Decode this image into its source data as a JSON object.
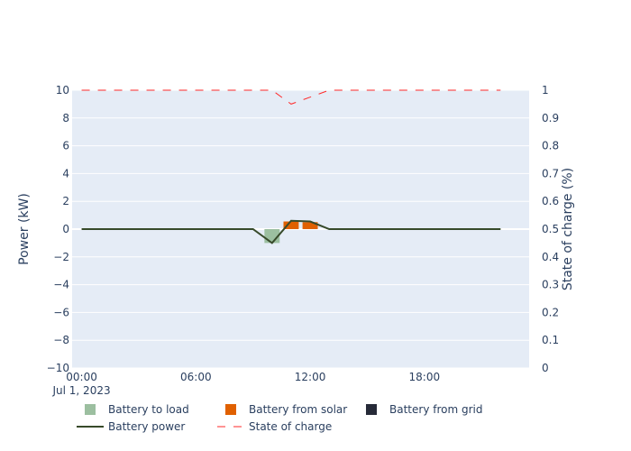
{
  "chart_data": {
    "type": "bar",
    "x_axis": {
      "range_hours": [
        -0.5,
        23.5
      ],
      "ticks": [
        {
          "hour": 0,
          "label": "00:00",
          "sublabel": "Jul 1, 2023"
        },
        {
          "hour": 6,
          "label": "06:00",
          "sublabel": ""
        },
        {
          "hour": 12,
          "label": "12:00",
          "sublabel": ""
        },
        {
          "hour": 18,
          "label": "18:00",
          "sublabel": ""
        }
      ]
    },
    "y_left": {
      "label": "Power (kW)",
      "range": [
        -10,
        10
      ],
      "ticks": [
        {
          "v": 10,
          "label": "10"
        },
        {
          "v": 8,
          "label": "8"
        },
        {
          "v": 6,
          "label": "6"
        },
        {
          "v": 4,
          "label": "4"
        },
        {
          "v": 2,
          "label": "2"
        },
        {
          "v": 0,
          "label": "0"
        },
        {
          "v": -2,
          "label": "−2"
        },
        {
          "v": -4,
          "label": "−4"
        },
        {
          "v": -6,
          "label": "−6"
        },
        {
          "v": -8,
          "label": "−8"
        },
        {
          "v": -10,
          "label": "−10"
        }
      ]
    },
    "y_right": {
      "label": "State of charge (%)",
      "range": [
        0,
        1
      ],
      "ticks": [
        {
          "v": 1,
          "label": "1"
        },
        {
          "v": 0.9,
          "label": "0.9"
        },
        {
          "v": 0.8,
          "label": "0.8"
        },
        {
          "v": 0.7,
          "label": "0.7"
        },
        {
          "v": 0.6,
          "label": "0.6"
        },
        {
          "v": 0.5,
          "label": "0.5"
        },
        {
          "v": 0.4,
          "label": "0.4"
        },
        {
          "v": 0.3,
          "label": "0.3"
        },
        {
          "v": 0.2,
          "label": "0.2"
        },
        {
          "v": 0.1,
          "label": "0.1"
        },
        {
          "v": 0,
          "label": "0"
        }
      ]
    },
    "bar_series": [
      {
        "name": "Battery to load",
        "color": "#9cbfa0",
        "points": [
          {
            "hour": 10,
            "value": -1.0
          }
        ]
      },
      {
        "name": "Battery from solar",
        "color": "#e06000",
        "points": [
          {
            "hour": 11,
            "value": 0.55
          },
          {
            "hour": 12,
            "value": 0.5
          }
        ]
      },
      {
        "name": "Battery from grid",
        "color": "#262a38",
        "points": []
      }
    ],
    "line_series": [
      {
        "name": "Battery power",
        "color": "#374a2a",
        "axis": "left",
        "dash": false,
        "hours": [
          0,
          1,
          2,
          3,
          4,
          5,
          6,
          7,
          8,
          9,
          10,
          11,
          12,
          13,
          14,
          15,
          16,
          17,
          18,
          19,
          20,
          21,
          22
        ],
        "values": [
          0,
          0,
          0,
          0,
          0,
          0,
          0,
          0,
          0,
          0,
          -1.0,
          0.6,
          0.55,
          0,
          0,
          0,
          0,
          0,
          0,
          0,
          0,
          0,
          0
        ]
      },
      {
        "name": "State of charge",
        "color": "#ff2a2a",
        "axis": "right",
        "dash": true,
        "hours": [
          0,
          1,
          2,
          3,
          4,
          5,
          6,
          7,
          8,
          9,
          10,
          11,
          12,
          13,
          14,
          15,
          16,
          17,
          18,
          19,
          20,
          21,
          22
        ],
        "values": [
          1,
          1,
          1,
          1,
          1,
          1,
          1,
          1,
          1,
          1,
          1,
          0.95,
          0.975,
          1,
          1,
          1,
          1,
          1,
          1,
          1,
          1,
          1,
          1
        ]
      }
    ],
    "legend": {
      "placement": "bottom",
      "items": [
        {
          "name": "Battery to load",
          "kind": "square",
          "color": "#9cbfa0"
        },
        {
          "name": "Battery from solar",
          "kind": "square",
          "color": "#e06000"
        },
        {
          "name": "Battery from grid",
          "kind": "square",
          "color": "#262a38"
        },
        {
          "name": "Battery power",
          "kind": "line",
          "color": "#374a2a"
        },
        {
          "name": "State of charge",
          "kind": "dash",
          "color": "#ff2a2a"
        }
      ]
    },
    "colors": {
      "plot_bg": "#e5ecf6",
      "grid": "#ffffff",
      "text": "#2a3f5f"
    },
    "grid": true
  }
}
